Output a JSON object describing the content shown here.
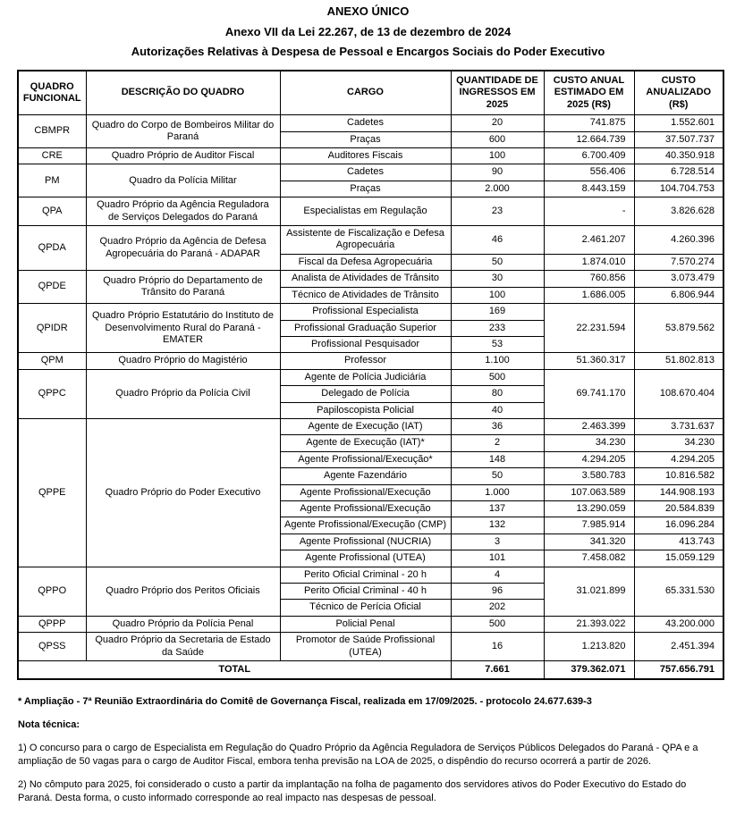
{
  "header": {
    "title": "ANEXO ÚNICO",
    "subtitle_law": "Anexo VII da Lei 22.267, de 13 de dezembro de 2024",
    "subtitle_desc": "Autorizações Relativas à Despesa de Pessoal e Encargos Sociais do Poder Executivo"
  },
  "table": {
    "columns": [
      "QUADRO FUNCIONAL",
      "DESCRIÇÃO DO QUADRO",
      "CARGO",
      "QUANTIDADE DE INGRESSOS EM 2025",
      "CUSTO ANUAL ESTIMADO EM 2025 (R$)",
      "CUSTO ANUALIZADO (R$)"
    ],
    "groups": [
      {
        "quadro": "CBMPR",
        "descricao": "Quadro do Corpo de Bombeiros Militar do Paraná",
        "merged_costs": false,
        "rows": [
          {
            "cargo": "Cadetes",
            "qtd": "20",
            "custo_anual": "741.875",
            "custo_anualizado": "1.552.601"
          },
          {
            "cargo": "Praças",
            "qtd": "600",
            "custo_anual": "12.664.739",
            "custo_anualizado": "37.507.737"
          }
        ]
      },
      {
        "quadro": "CRE",
        "descricao": "Quadro Próprio de Auditor Fiscal",
        "merged_costs": false,
        "rows": [
          {
            "cargo": "Auditores Fiscais",
            "qtd": "100",
            "custo_anual": "6.700.409",
            "custo_anualizado": "40.350.918"
          }
        ]
      },
      {
        "quadro": "PM",
        "descricao": "Quadro da Polícia Militar",
        "merged_costs": false,
        "rows": [
          {
            "cargo": "Cadetes",
            "qtd": "90",
            "custo_anual": "556.406",
            "custo_anualizado": "6.728.514"
          },
          {
            "cargo": "Praças",
            "qtd": "2.000",
            "custo_anual": "8.443.159",
            "custo_anualizado": "104.704.753"
          }
        ]
      },
      {
        "quadro": "QPA",
        "descricao": "Quadro Próprio da Agência Reguladora de Serviços Delegados do Paraná",
        "merged_costs": false,
        "rows": [
          {
            "cargo": "Especialistas em Regulação",
            "qtd": "23",
            "custo_anual": "-",
            "custo_anualizado": "3.826.628"
          }
        ]
      },
      {
        "quadro": "QPDA",
        "descricao": "Quadro Próprio da Agência de Defesa Agropecuária do Paraná - ADAPAR",
        "merged_costs": false,
        "rows": [
          {
            "cargo": "Assistente de Fiscalização e Defesa Agropecuária",
            "qtd": "46",
            "custo_anual": "2.461.207",
            "custo_anualizado": "4.260.396"
          },
          {
            "cargo": "Fiscal da Defesa Agropecuária",
            "qtd": "50",
            "custo_anual": "1.874.010",
            "custo_anualizado": "7.570.274"
          }
        ]
      },
      {
        "quadro": "QPDE",
        "descricao": "Quadro Próprio do Departamento de Trânsito do Paraná",
        "merged_costs": false,
        "rows": [
          {
            "cargo": "Analista de Atividades de Trânsito",
            "qtd": "30",
            "custo_anual": "760.856",
            "custo_anualizado": "3.073.479"
          },
          {
            "cargo": "Técnico de Atividades de Trânsito",
            "qtd": "100",
            "custo_anual": "1.686.005",
            "custo_anualizado": "6.806.944"
          }
        ]
      },
      {
        "quadro": "QPIDR",
        "descricao": "Quadro Próprio Estatutário do Instituto de Desenvolvimento Rural do Paraná - EMATER",
        "merged_costs": true,
        "custo_anual": "22.231.594",
        "custo_anualizado": "53.879.562",
        "rows": [
          {
            "cargo": "Profissional Especialista",
            "qtd": "169"
          },
          {
            "cargo": "Profissional Graduação Superior",
            "qtd": "233"
          },
          {
            "cargo": "Profissional Pesquisador",
            "qtd": "53"
          }
        ]
      },
      {
        "quadro": "QPM",
        "descricao": "Quadro Próprio do Magistério",
        "merged_costs": false,
        "rows": [
          {
            "cargo": "Professor",
            "qtd": "1.100",
            "custo_anual": "51.360.317",
            "custo_anualizado": "51.802.813"
          }
        ]
      },
      {
        "quadro": "QPPC",
        "descricao": "Quadro Próprio da Polícia Civil",
        "merged_costs": true,
        "custo_anual": "69.741.170",
        "custo_anualizado": "108.670.404",
        "rows": [
          {
            "cargo": "Agente de Polícia Judiciária",
            "qtd": "500"
          },
          {
            "cargo": "Delegado de Polícia",
            "qtd": "80"
          },
          {
            "cargo": "Papiloscopista Policial",
            "qtd": "40"
          }
        ]
      },
      {
        "quadro": "QPPE",
        "descricao": "Quadro Próprio do Poder Executivo",
        "merged_costs": false,
        "rows": [
          {
            "cargo": "Agente de Execução (IAT)",
            "qtd": "36",
            "custo_anual": "2.463.399",
            "custo_anualizado": "3.731.637"
          },
          {
            "cargo": "Agente de Execução (IAT)*",
            "qtd": "2",
            "custo_anual": "34.230",
            "custo_anualizado": "34.230"
          },
          {
            "cargo": "Agente Profissional/Execução*",
            "qtd": "148",
            "custo_anual": "4.294.205",
            "custo_anualizado": "4.294.205"
          },
          {
            "cargo": "Agente Fazendário",
            "qtd": "50",
            "custo_anual": "3.580.783",
            "custo_anualizado": "10.816.582"
          },
          {
            "cargo": "Agente Profissional/Execução",
            "qtd": "1.000",
            "custo_anual": "107.063.589",
            "custo_anualizado": "144.908.193"
          },
          {
            "cargo": "Agente Profissional/Execução",
            "qtd": "137",
            "custo_anual": "13.290.059",
            "custo_anualizado": "20.584.839"
          },
          {
            "cargo": "Agente Profissional/Execução (CMP)",
            "qtd": "132",
            "custo_anual": "7.985.914",
            "custo_anualizado": "16.096.284"
          },
          {
            "cargo": "Agente Profissional (NUCRIA)",
            "qtd": "3",
            "custo_anual": "341.320",
            "custo_anualizado": "413.743"
          },
          {
            "cargo": "Agente Profissional (UTEA)",
            "qtd": "101",
            "custo_anual": "7.458.082",
            "custo_anualizado": "15.059.129"
          }
        ]
      },
      {
        "quadro": "QPPO",
        "descricao": "Quadro Próprio dos Peritos Oficiais",
        "merged_costs": true,
        "custo_anual": "31.021.899",
        "custo_anualizado": "65.331.530",
        "rows": [
          {
            "cargo": "Perito Oficial Criminal - 20 h",
            "qtd": "4"
          },
          {
            "cargo": "Perito Oficial Criminal - 40 h",
            "qtd": "96"
          },
          {
            "cargo": "Técnico de Perícia Oficial",
            "qtd": "202"
          }
        ]
      },
      {
        "quadro": "QPPP",
        "descricao": "Quadro Próprio da Polícia Penal",
        "merged_costs": false,
        "rows": [
          {
            "cargo": "Policial Penal",
            "qtd": "500",
            "custo_anual": "21.393.022",
            "custo_anualizado": "43.200.000"
          }
        ]
      },
      {
        "quadro": "QPSS",
        "descricao": "Quadro Próprio da Secretaria de Estado da Saúde",
        "merged_costs": false,
        "rows": [
          {
            "cargo": "Promotor de Saúde Profissional (UTEA)",
            "qtd": "16",
            "custo_anual": "1.213.820",
            "custo_anualizado": "2.451.394"
          }
        ]
      }
    ],
    "total": {
      "label": "TOTAL",
      "qtd": "7.661",
      "custo_anual": "379.362.071",
      "custo_anualizado": "757.656.791"
    }
  },
  "footnotes": {
    "ampliacao": "* Ampliação - 7ª Reunião Extraordinária do Comitê de Governança Fiscal, realizada em 17/09/2025. - protocolo 24.677.639-3",
    "nota_tecnica_label": "Nota técnica:",
    "note1": "1) O concurso para o cargo de Especialista em Regulação do Quadro Próprio da Agência Reguladora de Serviços Públicos Delegados do Paraná - QPA e a ampliação de 50 vagas para o cargo de Auditor Fiscal, embora tenha previsão na LOA de 2025, o dispêndio do recurso ocorrerá a partir de 2026.",
    "note2": "2) No cômputo para 2025, foi considerado o custo a partir da implantação na folha de pagamento dos servidores ativos do Poder Executivo do Estado do Paraná. Desta forma, o custo informado corresponde ao real impacto nas despesas de pessoal."
  },
  "colors": {
    "text": "#000000",
    "border": "#000000",
    "background": "#ffffff"
  }
}
